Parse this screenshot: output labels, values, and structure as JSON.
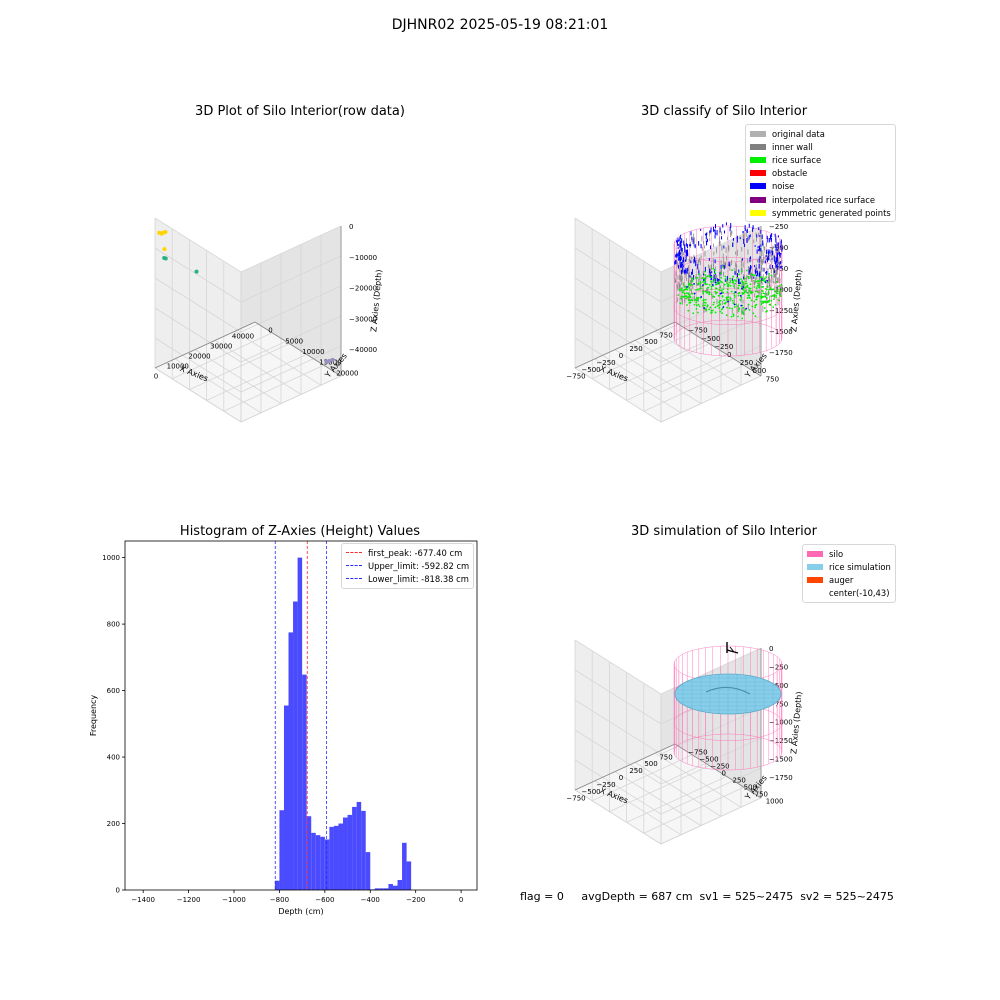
{
  "figure": {
    "suptitle": "DJHNR02 2025-05-19 08:21:01"
  },
  "colors": {
    "pane_left": "#eeeeee",
    "pane_right": "#e4e4e4",
    "pane_floor": "#f6f6f6",
    "grid": "#d6d6d6",
    "hist_bar": "#4a4aff",
    "peak_line": "#ff2a2a",
    "limit_line": "#2a2aff",
    "silo_pink": "#ff69b4",
    "rice_sim": "#87ceeb",
    "rice_sim_dark": "#5aa9c7",
    "auger": "#ff4500"
  },
  "panel1": {
    "title": "3D Plot of Silo Interior(row data)",
    "xlabel": "X Axies",
    "ylabel": "Y Axies",
    "zlabel": "Z Axies (Depth)",
    "x_ticks": [
      "0",
      "10000",
      "20000",
      "30000",
      "40000"
    ],
    "y_ticks": [
      "0",
      "5000",
      "10000",
      "15000",
      "20000"
    ],
    "z_ticks": [
      "0",
      "−10000",
      "−20000",
      "−30000",
      "−40000"
    ]
  },
  "panel2": {
    "title": "3D classify of Silo Interior",
    "xlabel": "X Axies",
    "ylabel": "Y Axies",
    "zlabel": "Z Axies (Depth)",
    "x_ticks": [
      "−750",
      "−500",
      "−250",
      "0",
      "250",
      "500",
      "750"
    ],
    "y_ticks": [
      "−750",
      "−500",
      "−250",
      "0",
      "250",
      "500",
      "750"
    ],
    "z_ticks": [
      "−250",
      "−500",
      "−750",
      "−1000",
      "−1250",
      "−1500",
      "−1750"
    ],
    "legend": [
      {
        "label": "original data",
        "color": "#b0b0b0"
      },
      {
        "label": "inner wall",
        "color": "#808080"
      },
      {
        "label": "rice surface",
        "color": "#00ee00"
      },
      {
        "label": "obstacle",
        "color": "#ff0000"
      },
      {
        "label": "noise",
        "color": "#0000ff"
      },
      {
        "label": "interpolated rice surface",
        "color": "#800080"
      },
      {
        "label": "symmetric generated points",
        "color": "#ffff00"
      }
    ]
  },
  "panel3": {
    "title": "Histogram of Z-Axies (Height) Values",
    "xlabel": "Depth (cm)",
    "ylabel": "Frequency",
    "legend": [
      {
        "label": "first_peak: -677.40 cm",
        "color": "#ff2a2a"
      },
      {
        "label": "Upper_limit: -592.82 cm",
        "color": "#2a2aff"
      },
      {
        "label": "Lower_limit: -818.38 cm",
        "color": "#2a2aff"
      }
    ]
  },
  "panel4": {
    "title": "3D simulation of Silo Interior",
    "xlabel": "X Axies",
    "ylabel": "Y Axies",
    "zlabel": "Z Axies (Depth)",
    "x_ticks": [
      "−750",
      "−500",
      "−250",
      "0",
      "250",
      "500",
      "750"
    ],
    "y_ticks": [
      "−750",
      "−500",
      "−250",
      "0",
      "250",
      "500",
      "750",
      "1000"
    ],
    "z_ticks": [
      "0",
      "−250",
      "−500",
      "−750",
      "−1000",
      "−1250",
      "−1500",
      "−1750"
    ],
    "legend": [
      {
        "label": "silo",
        "color": "#ff69b4"
      },
      {
        "label": "rice simulation",
        "color": "#87ceeb"
      },
      {
        "label": "auger",
        "color": "#ff4500"
      },
      {
        "label": "center(-10,43)",
        "color": ""
      }
    ]
  },
  "footer": {
    "flag": "flag = 0",
    "stats": "avgDepth = 687 cm  sv1 = 525~2475  sv2 = 525~2475"
  },
  "chart_data": [
    {
      "type": "scatter",
      "title": "3D Plot of Silo Interior(row data)",
      "xlabel": "X Axies",
      "ylabel": "Y Axies",
      "zlabel": "Z Axies (Depth)",
      "xlim": [
        -2000,
        45000
      ],
      "ylim": [
        0,
        22000
      ],
      "zlim": [
        -45000,
        0
      ],
      "series": [
        {
          "color": "#ffd400",
          "points": [
            [
              0,
              0,
              -5000
            ],
            [
              500,
              300,
              -5200
            ],
            [
              1000,
              600,
              -4800
            ],
            [
              1500,
              200,
              -5300
            ],
            [
              2000,
              500,
              -5000
            ],
            [
              800,
              900,
              -9500
            ]
          ]
        },
        {
          "color": "#2ab380",
          "points": [
            [
              1200,
              600,
              -12500
            ],
            [
              1600,
              800,
              -12600
            ],
            [
              12000,
              3000,
              -18000
            ]
          ]
        },
        {
          "color": "#9a8fc0",
          "points": [
            [
              40000,
              21000,
              -40000
            ],
            [
              40500,
              21500,
              -39500
            ],
            [
              41000,
              22000,
              -39000
            ]
          ]
        }
      ]
    },
    {
      "type": "scatter",
      "title": "3D classify of Silo Interior",
      "xlabel": "X Axies",
      "ylabel": "Y Axies",
      "zlabel": "Z Axies (Depth)",
      "xlim": [
        -900,
        900
      ],
      "ylim": [
        -900,
        900
      ],
      "zlim": [
        -1900,
        0
      ]
    },
    {
      "type": "bar",
      "title": "Histogram of Z-Axies (Height) Values",
      "xlabel": "Depth (cm)",
      "ylabel": "Frequency",
      "xlim": [
        -1480,
        70
      ],
      "ylim": [
        0,
        1050
      ],
      "x_ticks": [
        -1400,
        -1200,
        -1000,
        -800,
        -600,
        -400,
        -200,
        0
      ],
      "y_ticks": [
        0,
        200,
        400,
        600,
        800,
        1000
      ],
      "bin_width": 20,
      "bin_starts": [
        -820,
        -800,
        -780,
        -760,
        -740,
        -720,
        -700,
        -680,
        -660,
        -640,
        -620,
        -600,
        -580,
        -560,
        -540,
        -520,
        -500,
        -480,
        -460,
        -440,
        -420,
        -400,
        -380,
        -360,
        -340,
        -320,
        -300,
        -280,
        -260,
        -240,
        -220,
        -200,
        -180,
        -160,
        -140,
        -120,
        -100,
        -80,
        -60,
        -40,
        -20
      ],
      "values": [
        28,
        240,
        555,
        775,
        868,
        1000,
        648,
        222,
        172,
        165,
        160,
        152,
        190,
        193,
        200,
        218,
        226,
        250,
        265,
        238,
        114,
        2,
        5,
        5,
        5,
        18,
        13,
        30,
        142,
        86,
        0,
        0,
        0,
        0,
        0,
        0,
        0,
        0,
        0,
        0,
        0
      ],
      "vlines": [
        {
          "label": "first_peak: -677.40 cm",
          "x": -677.4,
          "color": "#ff2a2a"
        },
        {
          "label": "Upper_limit: -592.82 cm",
          "x": -592.82,
          "color": "#2a2aff"
        },
        {
          "label": "Lower_limit: -818.38 cm",
          "x": -818.38,
          "color": "#2a2aff"
        }
      ]
    },
    {
      "type": "area",
      "title": "3D simulation of Silo Interior",
      "xlabel": "X Axies",
      "ylabel": "Y Axies",
      "zlabel": "Z Axies (Depth)",
      "xlim": [
        -900,
        900
      ],
      "ylim": [
        -900,
        1000
      ],
      "zlim": [
        -1900,
        0
      ],
      "center": [
        -10,
        43
      ],
      "avg_depth_cm": 687
    }
  ]
}
